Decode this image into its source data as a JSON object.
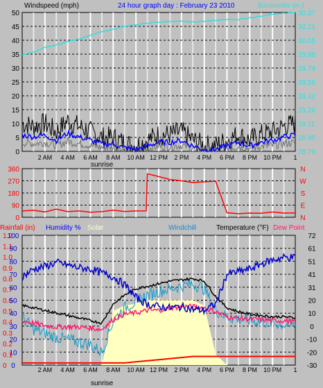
{
  "colors": {
    "windspeed": "#000000",
    "gust": "#000000",
    "avg": "#0000ff",
    "barometer": "#33dddd",
    "direction": "#ff0000",
    "humidity": "#0000cc",
    "rain": "#ff0000",
    "solar": "#ffffc0",
    "windchill": "#1199cc",
    "temperature": "#000000",
    "dewpoint": "#ff1c6c",
    "label_blue": "#0000ff",
    "label_cyan": "#33dddd",
    "label_red": "#ff0000",
    "label_pink": "#ff1c6c",
    "label_yellow": "#ffffcc",
    "label_windchill": "#1a8ac8"
  },
  "header": {
    "windspeed_label": "Windspeed (mph)",
    "title": "24 hour graph day : February 23 2010",
    "barometer_label": "Barometer (in.)"
  },
  "x_ticks": [
    "2 AM",
    "4 AM",
    "6 AM",
    "8 AM",
    "10 AM",
    "12 PM",
    "2 PM",
    "4 PM",
    "6 PM",
    "8 PM",
    "10 PM"
  ],
  "x_end_label": "1",
  "sunrise_label": "sunrise",
  "bottom_labels": {
    "rainfall": "Rainfall (in)",
    "humidity": "Humidity %",
    "solar": "Solar",
    "windchill": "Windchill",
    "temperature": "Temperature (°F)",
    "dewpoint": "Dew Point"
  },
  "chart_data": [
    {
      "type": "line",
      "title": "24 hour graph day : February 23 2010",
      "ylabel": "Windspeed (mph)",
      "ylim": [
        0,
        50
      ],
      "y2label": "Barometer (in.)",
      "y2lim": [
        28.79,
        30.37
      ],
      "y_ticks": [
        "50",
        "45",
        "40",
        "35",
        "30",
        "25",
        "20",
        "15",
        "10",
        "5",
        "0"
      ],
      "y2_ticks": [
        "30.37",
        "30.21",
        "30.05",
        "29.89",
        "29.74",
        "29.58",
        "29.42",
        "29.26",
        "29.11",
        "28.95",
        "28.79"
      ],
      "x": [
        0,
        1,
        2,
        3,
        4,
        5,
        6,
        7,
        8,
        9,
        10,
        11,
        12,
        13,
        14,
        15,
        16,
        17,
        18,
        19,
        20,
        21,
        22,
        23,
        24
      ],
      "series": [
        {
          "name": "Windspeed (mph)",
          "values": [
            9,
            8,
            9,
            6,
            10,
            8,
            6,
            4,
            4,
            2,
            1,
            3,
            5,
            5,
            6,
            3,
            1,
            1,
            3,
            5,
            3,
            5,
            6,
            8,
            9
          ]
        },
        {
          "name": "Barometer (in.)",
          "values": [
            29.89,
            29.92,
            29.97,
            30.0,
            30.04,
            30.07,
            30.11,
            30.15,
            30.18,
            30.21,
            30.23,
            30.25,
            30.26,
            30.27,
            30.27,
            30.26,
            30.27,
            30.28,
            30.29,
            30.29,
            30.31,
            30.33,
            30.35,
            30.36,
            30.37
          ]
        }
      ],
      "grid": true
    },
    {
      "type": "line",
      "ylabel": "",
      "ylim": [
        0,
        360
      ],
      "y_ticks": [
        "360",
        "270",
        "180",
        "90",
        "0"
      ],
      "compass": [
        "N",
        "W",
        "S",
        "E",
        "N"
      ],
      "x": [
        0,
        1,
        2,
        3,
        4,
        5,
        6,
        7,
        8,
        9,
        10,
        10.9,
        11,
        12,
        13,
        14,
        15,
        16,
        17,
        18,
        19,
        20,
        21,
        22,
        23,
        24
      ],
      "series": [
        {
          "name": "Wind direction",
          "values": [
            45,
            50,
            40,
            60,
            45,
            50,
            40,
            45,
            50,
            45,
            50,
            50,
            320,
            300,
            280,
            270,
            260,
            265,
            265,
            30,
            25,
            35,
            30,
            40,
            30,
            35
          ]
        }
      ],
      "grid": true
    },
    {
      "type": "line",
      "ylim_humidity": [
        0,
        100
      ],
      "ylim_rain": [
        0,
        1.2
      ],
      "ylim_temp": [
        -30,
        72
      ],
      "y_ticks_rain": [
        "1.2",
        "1.1",
        "1.0",
        "0.9",
        "0.8",
        "0.7",
        "0.6",
        "0.5",
        "0.4",
        "0.3",
        "0.2",
        "0.1",
        "0"
      ],
      "y_ticks_humidity": [
        "100",
        "90",
        "80",
        "70",
        "60",
        "50",
        "40",
        "30",
        "20",
        "10",
        "0"
      ],
      "y_ticks_temp": [
        "72",
        "61",
        "51",
        "41",
        "31",
        "20",
        "10",
        "0",
        "-10",
        "-20",
        "-30"
      ],
      "x": [
        0,
        1,
        2,
        3,
        4,
        5,
        6,
        7,
        8,
        9,
        10,
        11,
        12,
        13,
        14,
        15,
        16,
        17,
        18,
        19,
        20,
        21,
        22,
        23,
        24
      ],
      "series": [
        {
          "name": "Humidity %",
          "values": [
            68,
            74,
            76,
            79,
            77,
            75,
            74,
            71,
            68,
            62,
            52,
            47,
            45,
            44,
            45,
            43,
            42,
            47,
            70,
            72,
            74,
            78,
            81,
            83,
            83
          ]
        },
        {
          "name": "Temperature (°F)",
          "values": [
            17,
            15,
            13,
            11,
            9,
            7,
            5,
            3,
            18,
            25,
            30,
            32,
            34,
            36,
            37,
            38,
            36,
            24,
            15,
            12,
            10,
            9,
            8,
            8,
            7
          ]
        },
        {
          "name": "Dew Point",
          "values": [
            5,
            3,
            1,
            0,
            0,
            0,
            -1,
            -2,
            6,
            10,
            11,
            13,
            13,
            15,
            16,
            16,
            15,
            12,
            8,
            7,
            6,
            6,
            5,
            5,
            4
          ]
        },
        {
          "name": "Windchill",
          "values": [
            8,
            -2,
            -5,
            -8,
            -10,
            -12,
            -14,
            -20,
            5,
            15,
            20,
            25,
            28,
            30,
            32,
            34,
            30,
            13,
            8,
            6,
            5,
            4,
            3,
            2,
            1
          ]
        },
        {
          "name": "Rainfall (in)",
          "values": [
            0.02,
            0.02,
            0.02,
            0.02,
            0.02,
            0.02,
            0.02,
            0.02,
            0.02,
            0.02,
            0.03,
            0.04,
            0.05,
            0.06,
            0.07,
            0.08,
            0.08,
            0.08,
            0.08,
            0.08,
            0.08,
            0.08,
            0.08,
            0.08,
            0.08
          ]
        },
        {
          "name": "Solar",
          "values": [
            0,
            0,
            0,
            0,
            0,
            0,
            0,
            0,
            0.5,
            0.55,
            0.57,
            0.6,
            0.6,
            0.6,
            0.6,
            0.6,
            0.55,
            0.1,
            0,
            0,
            0,
            0,
            0,
            0,
            0
          ]
        }
      ],
      "grid": true
    }
  ]
}
